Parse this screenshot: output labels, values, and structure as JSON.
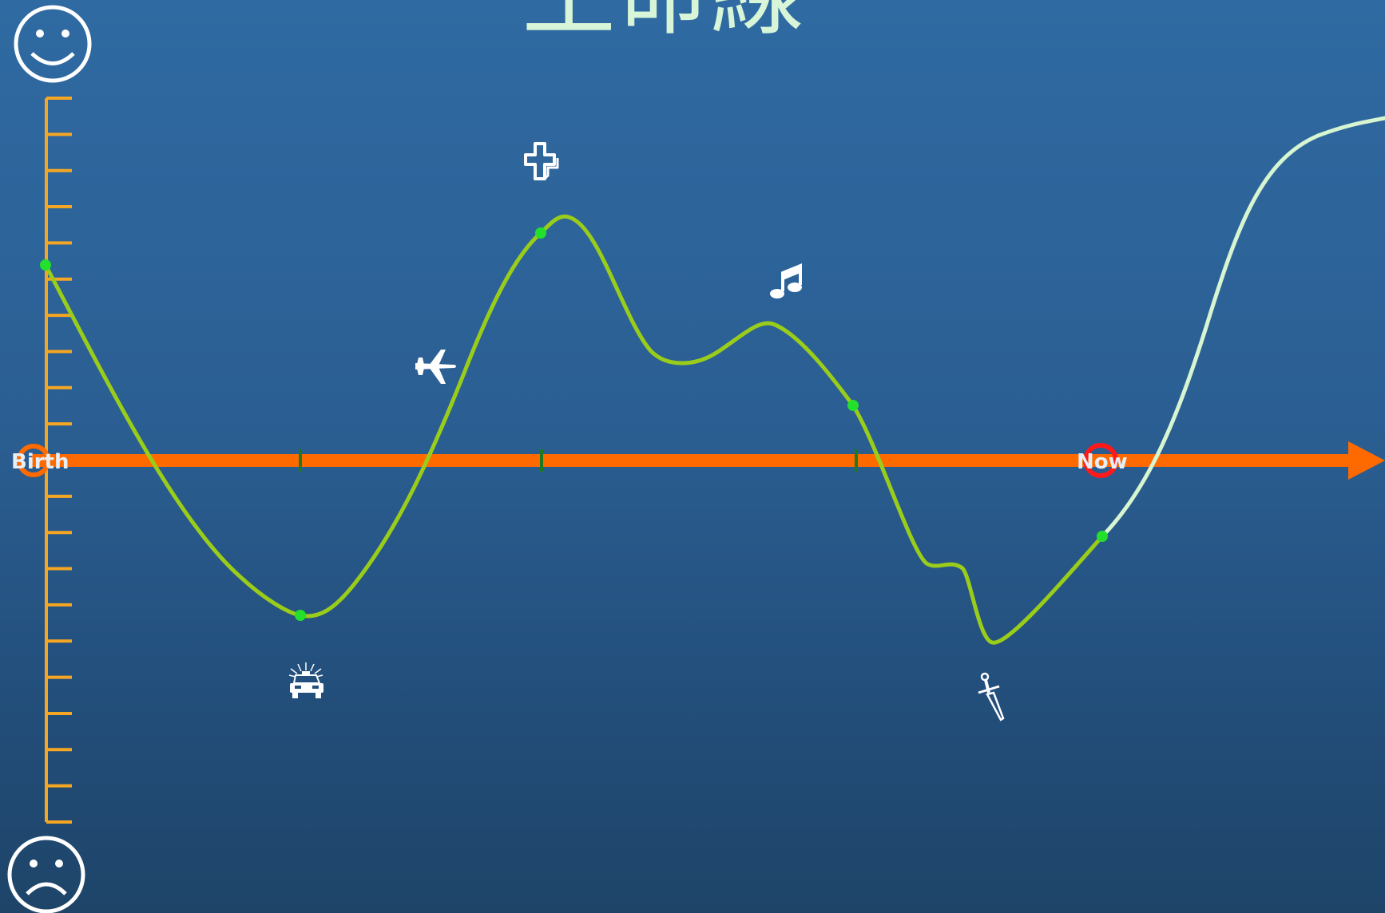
{
  "title": "生命線",
  "timeline": {
    "start_label": "Birth",
    "now_label": "Now"
  },
  "colors": {
    "background_top": "#2f6aa2",
    "background_bottom": "#1e4468",
    "timeline": "#ff6a00",
    "mood_axis": "#f5a623",
    "past_curve": "#9acd1a",
    "future_curve": "#d6f5d0",
    "event_point": "#22e02c",
    "now_marker": "#ff1a1a",
    "icons": "#ffffff"
  },
  "mood_axis": {
    "top_icon": "happy-face-icon",
    "bottom_icon": "sad-face-icon"
  },
  "events": [
    {
      "name": "birth",
      "icon": "birth-point"
    },
    {
      "name": "police-car",
      "icon": "police-car-icon"
    },
    {
      "name": "airplane",
      "icon": "airplane-icon"
    },
    {
      "name": "cross",
      "icon": "cross-icon"
    },
    {
      "name": "music",
      "icon": "music-note-icon"
    },
    {
      "name": "dagger",
      "icon": "dagger-icon"
    },
    {
      "name": "now",
      "icon": "now-point"
    }
  ]
}
